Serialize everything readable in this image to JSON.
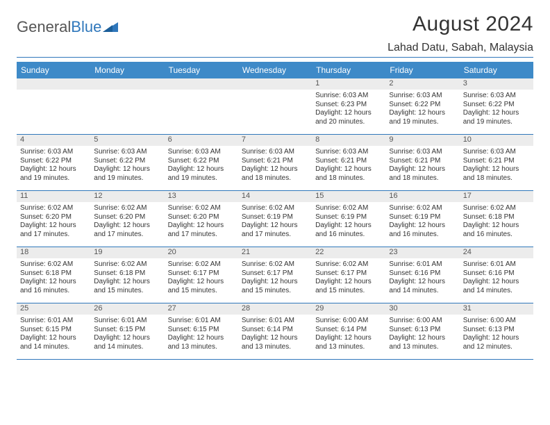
{
  "brand": {
    "part1": "General",
    "part2": "Blue"
  },
  "title": "August 2024",
  "location": "Lahad Datu, Sabah, Malaysia",
  "colors": {
    "header_bg": "#3e8ac8",
    "rule": "#2f77bb",
    "daynum_bg": "#ececec",
    "text": "#333333"
  },
  "day_headers": [
    "Sunday",
    "Monday",
    "Tuesday",
    "Wednesday",
    "Thursday",
    "Friday",
    "Saturday"
  ],
  "weeks": [
    [
      {
        "n": "",
        "sr": "",
        "ss": "",
        "dl": ""
      },
      {
        "n": "",
        "sr": "",
        "ss": "",
        "dl": ""
      },
      {
        "n": "",
        "sr": "",
        "ss": "",
        "dl": ""
      },
      {
        "n": "",
        "sr": "",
        "ss": "",
        "dl": ""
      },
      {
        "n": "1",
        "sr": "Sunrise: 6:03 AM",
        "ss": "Sunset: 6:23 PM",
        "dl": "Daylight: 12 hours and 20 minutes."
      },
      {
        "n": "2",
        "sr": "Sunrise: 6:03 AM",
        "ss": "Sunset: 6:22 PM",
        "dl": "Daylight: 12 hours and 19 minutes."
      },
      {
        "n": "3",
        "sr": "Sunrise: 6:03 AM",
        "ss": "Sunset: 6:22 PM",
        "dl": "Daylight: 12 hours and 19 minutes."
      }
    ],
    [
      {
        "n": "4",
        "sr": "Sunrise: 6:03 AM",
        "ss": "Sunset: 6:22 PM",
        "dl": "Daylight: 12 hours and 19 minutes."
      },
      {
        "n": "5",
        "sr": "Sunrise: 6:03 AM",
        "ss": "Sunset: 6:22 PM",
        "dl": "Daylight: 12 hours and 19 minutes."
      },
      {
        "n": "6",
        "sr": "Sunrise: 6:03 AM",
        "ss": "Sunset: 6:22 PM",
        "dl": "Daylight: 12 hours and 19 minutes."
      },
      {
        "n": "7",
        "sr": "Sunrise: 6:03 AM",
        "ss": "Sunset: 6:21 PM",
        "dl": "Daylight: 12 hours and 18 minutes."
      },
      {
        "n": "8",
        "sr": "Sunrise: 6:03 AM",
        "ss": "Sunset: 6:21 PM",
        "dl": "Daylight: 12 hours and 18 minutes."
      },
      {
        "n": "9",
        "sr": "Sunrise: 6:03 AM",
        "ss": "Sunset: 6:21 PM",
        "dl": "Daylight: 12 hours and 18 minutes."
      },
      {
        "n": "10",
        "sr": "Sunrise: 6:03 AM",
        "ss": "Sunset: 6:21 PM",
        "dl": "Daylight: 12 hours and 18 minutes."
      }
    ],
    [
      {
        "n": "11",
        "sr": "Sunrise: 6:02 AM",
        "ss": "Sunset: 6:20 PM",
        "dl": "Daylight: 12 hours and 17 minutes."
      },
      {
        "n": "12",
        "sr": "Sunrise: 6:02 AM",
        "ss": "Sunset: 6:20 PM",
        "dl": "Daylight: 12 hours and 17 minutes."
      },
      {
        "n": "13",
        "sr": "Sunrise: 6:02 AM",
        "ss": "Sunset: 6:20 PM",
        "dl": "Daylight: 12 hours and 17 minutes."
      },
      {
        "n": "14",
        "sr": "Sunrise: 6:02 AM",
        "ss": "Sunset: 6:19 PM",
        "dl": "Daylight: 12 hours and 17 minutes."
      },
      {
        "n": "15",
        "sr": "Sunrise: 6:02 AM",
        "ss": "Sunset: 6:19 PM",
        "dl": "Daylight: 12 hours and 16 minutes."
      },
      {
        "n": "16",
        "sr": "Sunrise: 6:02 AM",
        "ss": "Sunset: 6:19 PM",
        "dl": "Daylight: 12 hours and 16 minutes."
      },
      {
        "n": "17",
        "sr": "Sunrise: 6:02 AM",
        "ss": "Sunset: 6:18 PM",
        "dl": "Daylight: 12 hours and 16 minutes."
      }
    ],
    [
      {
        "n": "18",
        "sr": "Sunrise: 6:02 AM",
        "ss": "Sunset: 6:18 PM",
        "dl": "Daylight: 12 hours and 16 minutes."
      },
      {
        "n": "19",
        "sr": "Sunrise: 6:02 AM",
        "ss": "Sunset: 6:18 PM",
        "dl": "Daylight: 12 hours and 15 minutes."
      },
      {
        "n": "20",
        "sr": "Sunrise: 6:02 AM",
        "ss": "Sunset: 6:17 PM",
        "dl": "Daylight: 12 hours and 15 minutes."
      },
      {
        "n": "21",
        "sr": "Sunrise: 6:02 AM",
        "ss": "Sunset: 6:17 PM",
        "dl": "Daylight: 12 hours and 15 minutes."
      },
      {
        "n": "22",
        "sr": "Sunrise: 6:02 AM",
        "ss": "Sunset: 6:17 PM",
        "dl": "Daylight: 12 hours and 15 minutes."
      },
      {
        "n": "23",
        "sr": "Sunrise: 6:01 AM",
        "ss": "Sunset: 6:16 PM",
        "dl": "Daylight: 12 hours and 14 minutes."
      },
      {
        "n": "24",
        "sr": "Sunrise: 6:01 AM",
        "ss": "Sunset: 6:16 PM",
        "dl": "Daylight: 12 hours and 14 minutes."
      }
    ],
    [
      {
        "n": "25",
        "sr": "Sunrise: 6:01 AM",
        "ss": "Sunset: 6:15 PM",
        "dl": "Daylight: 12 hours and 14 minutes."
      },
      {
        "n": "26",
        "sr": "Sunrise: 6:01 AM",
        "ss": "Sunset: 6:15 PM",
        "dl": "Daylight: 12 hours and 14 minutes."
      },
      {
        "n": "27",
        "sr": "Sunrise: 6:01 AM",
        "ss": "Sunset: 6:15 PM",
        "dl": "Daylight: 12 hours and 13 minutes."
      },
      {
        "n": "28",
        "sr": "Sunrise: 6:01 AM",
        "ss": "Sunset: 6:14 PM",
        "dl": "Daylight: 12 hours and 13 minutes."
      },
      {
        "n": "29",
        "sr": "Sunrise: 6:00 AM",
        "ss": "Sunset: 6:14 PM",
        "dl": "Daylight: 12 hours and 13 minutes."
      },
      {
        "n": "30",
        "sr": "Sunrise: 6:00 AM",
        "ss": "Sunset: 6:13 PM",
        "dl": "Daylight: 12 hours and 13 minutes."
      },
      {
        "n": "31",
        "sr": "Sunrise: 6:00 AM",
        "ss": "Sunset: 6:13 PM",
        "dl": "Daylight: 12 hours and 12 minutes."
      }
    ]
  ]
}
